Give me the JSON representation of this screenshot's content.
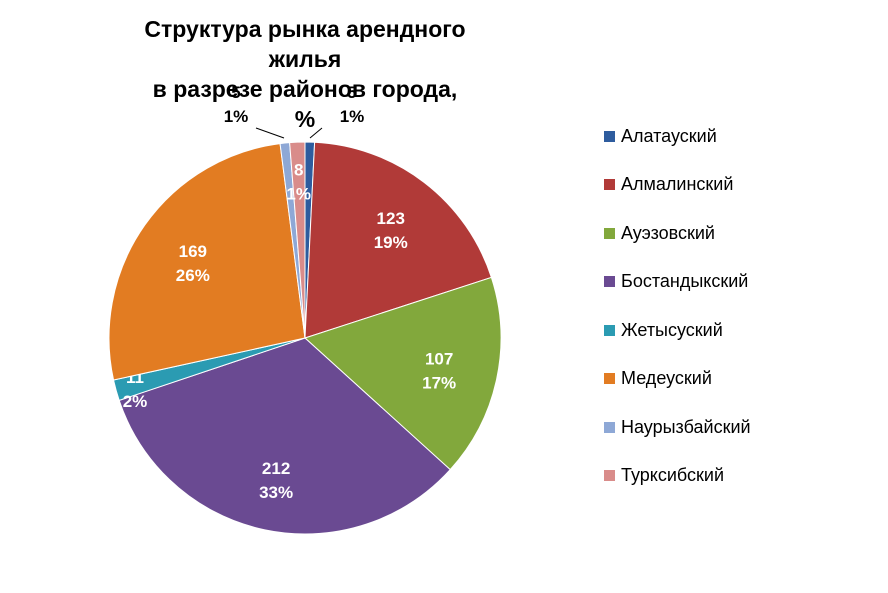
{
  "chart_data": {
    "type": "pie",
    "title": "Структура рынка арендного жилья в разрезе районов города, %",
    "title_lines": [
      "Структура рынка арендного жилья",
      "в разрезе районов города, %"
    ],
    "legend_position": "right",
    "slices": [
      {
        "name": "Алатауский",
        "value": 5,
        "percent_label": "1%",
        "color": "#2e5c9e"
      },
      {
        "name": "Алмалинский",
        "value": 123,
        "percent_label": "19%",
        "color": "#b13a38"
      },
      {
        "name": "Ауэзовский",
        "value": 107,
        "percent_label": "17%",
        "color": "#82a83c"
      },
      {
        "name": "Бостандыкский",
        "value": 212,
        "percent_label": "33%",
        "color": "#6a4a92"
      },
      {
        "name": "Жетысуский",
        "value": 11,
        "percent_label": "2%",
        "color": "#2b9bb2"
      },
      {
        "name": "Медеуский",
        "value": 169,
        "percent_label": "26%",
        "color": "#e27c22"
      },
      {
        "name": "Наурызбайский",
        "value": 5,
        "percent_label": "1%",
        "color": "#8ea8d6"
      },
      {
        "name": "Турксибский",
        "value": 8,
        "percent_label": "1%",
        "color": "#d98c8a"
      }
    ]
  }
}
